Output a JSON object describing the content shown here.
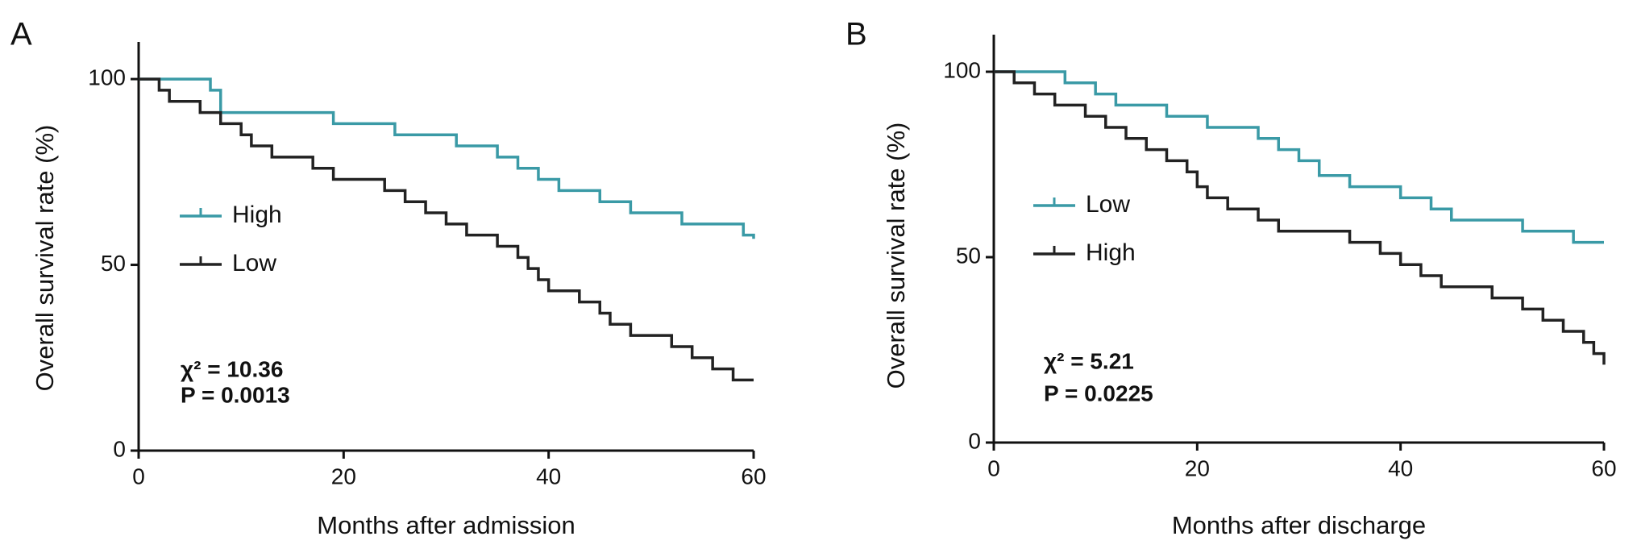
{
  "chart_data": [
    {
      "type": "step",
      "panel_label": "A",
      "ylabel": "Overall survival rate (%)",
      "xlabel": "Months after admission",
      "xlim": [
        0,
        60
      ],
      "ylim": [
        0,
        110
      ],
      "xticks": [
        0,
        20,
        40,
        60
      ],
      "yticks": [
        0,
        50,
        100
      ],
      "annotations": [
        "χ² = 10.36",
        "P = 0.0013"
      ],
      "series": [
        {
          "name": "High",
          "color": "#3a9aa6",
          "x": [
            0,
            7,
            8,
            19,
            25,
            31,
            35,
            37,
            39,
            41,
            45,
            48,
            53,
            59,
            60
          ],
          "values": [
            100,
            97,
            91,
            88,
            85,
            82,
            79,
            76,
            73,
            70,
            67,
            64,
            61,
            58,
            57
          ]
        },
        {
          "name": "Low",
          "color": "#222222",
          "x": [
            0,
            2,
            3,
            6,
            8,
            10,
            11,
            13,
            17,
            19,
            24,
            26,
            28,
            30,
            32,
            35,
            37,
            38,
            39,
            40,
            43,
            45,
            46,
            48,
            52,
            54,
            56,
            58,
            60
          ],
          "values": [
            100,
            97,
            94,
            91,
            88,
            85,
            82,
            79,
            76,
            73,
            70,
            67,
            64,
            61,
            58,
            55,
            52,
            49,
            46,
            43,
            40,
            37,
            34,
            31,
            28,
            25,
            22,
            19,
            19
          ]
        }
      ]
    },
    {
      "type": "step",
      "panel_label": "B",
      "ylabel": "Overall survival rate (%)",
      "xlabel": "Months after discharge",
      "xlim": [
        0,
        60
      ],
      "ylim": [
        0,
        110
      ],
      "xticks": [
        0,
        20,
        40,
        60
      ],
      "yticks": [
        0,
        50,
        100
      ],
      "annotations": [
        "χ² = 5.21",
        "P = 0.0225"
      ],
      "series": [
        {
          "name": "Low",
          "color": "#3a9aa6",
          "x": [
            0,
            7,
            10,
            12,
            17,
            21,
            26,
            28,
            30,
            32,
            35,
            40,
            43,
            45,
            52,
            57,
            60
          ],
          "values": [
            100,
            97,
            94,
            91,
            88,
            85,
            82,
            79,
            76,
            72,
            69,
            66,
            63,
            60,
            57,
            54,
            54
          ]
        },
        {
          "name": "High",
          "color": "#222222",
          "x": [
            0,
            2,
            4,
            6,
            9,
            11,
            13,
            15,
            17,
            19,
            20,
            21,
            23,
            26,
            28,
            35,
            38,
            40,
            42,
            44,
            49,
            52,
            54,
            56,
            58,
            59,
            60
          ],
          "values": [
            100,
            97,
            94,
            91,
            88,
            85,
            82,
            79,
            76,
            73,
            69,
            66,
            63,
            60,
            57,
            54,
            51,
            48,
            45,
            42,
            39,
            36,
            33,
            30,
            27,
            24,
            21
          ]
        }
      ]
    }
  ]
}
